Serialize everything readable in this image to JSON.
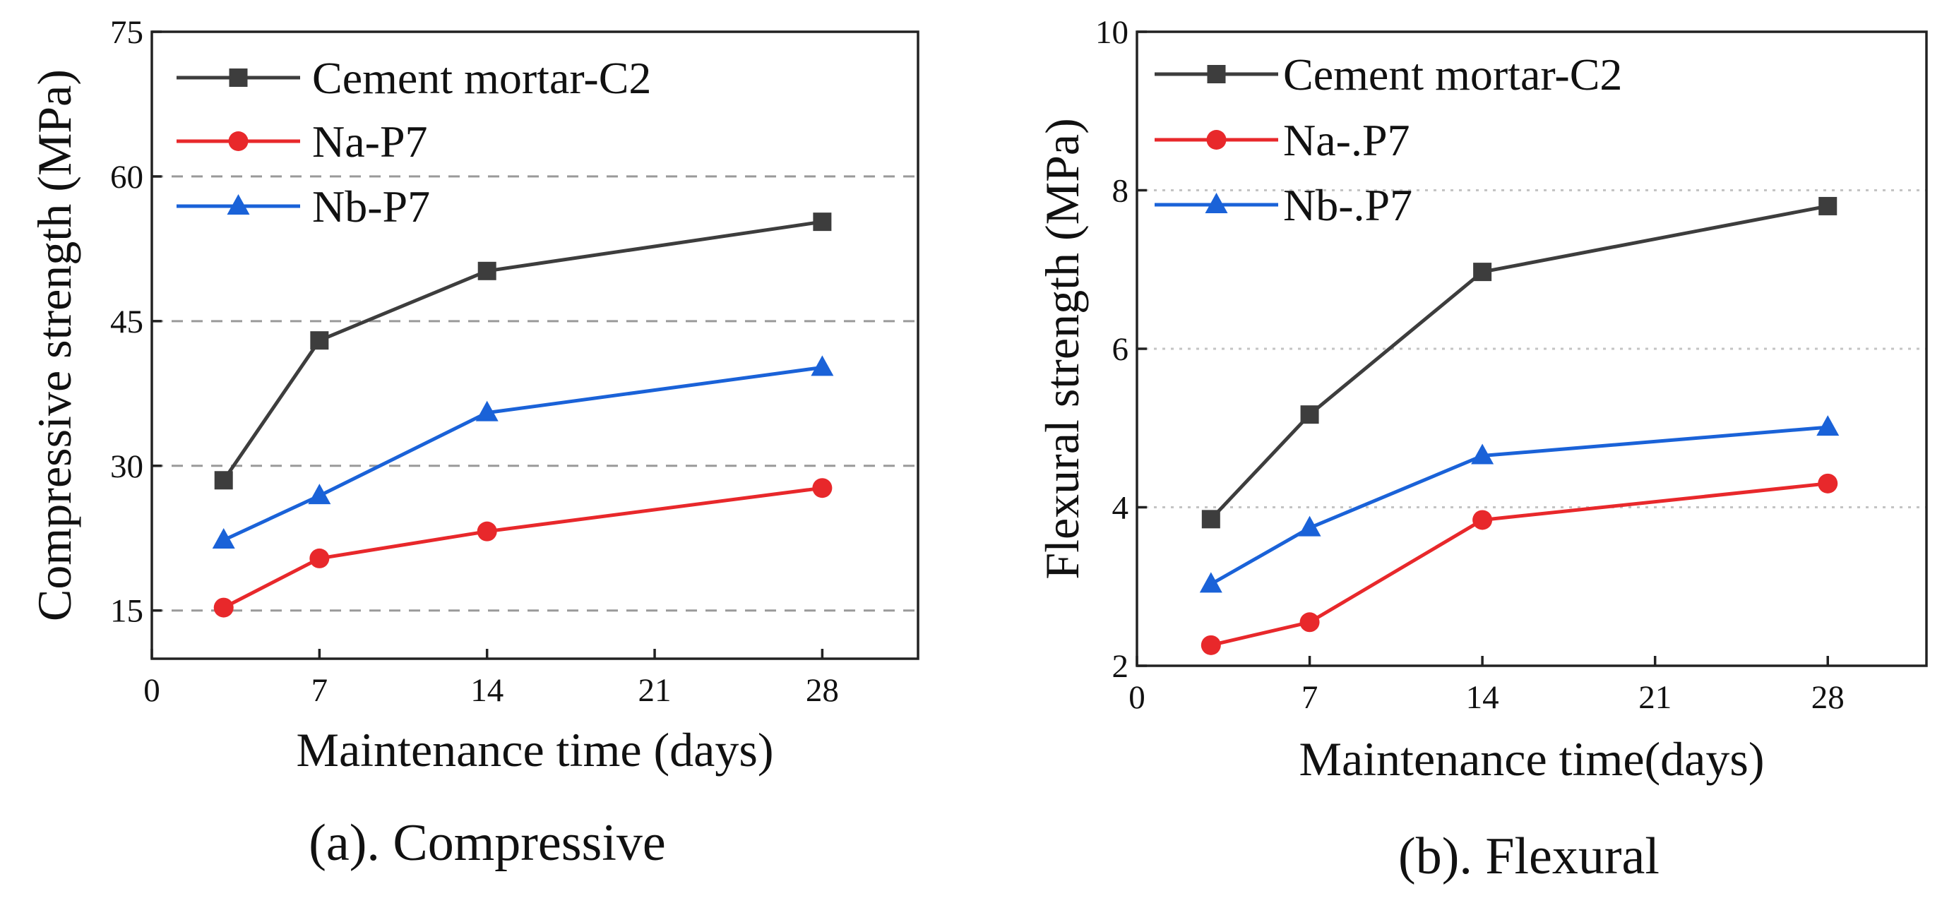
{
  "chart_data": [
    {
      "type": "line",
      "caption": "(a). Compressive",
      "xlabel": "Maintenance time (days)",
      "ylabel": "Compressive strength (MPa)",
      "xlim": [
        0,
        32
      ],
      "ylim": [
        10,
        75
      ],
      "xticks": [
        "0",
        "7",
        "14",
        "21",
        "28"
      ],
      "xtick_values": [
        0,
        7,
        14,
        21,
        28
      ],
      "yticks": [
        "15",
        "30",
        "45",
        "60",
        "75"
      ],
      "ytick_values": [
        15,
        30,
        45,
        60,
        75
      ],
      "grid_y": [
        15,
        30,
        45,
        60
      ],
      "grid_style": "dashed",
      "legend_position": "top-left",
      "x": [
        3,
        7,
        14,
        28
      ],
      "series": [
        {
          "name": "Cement mortar-C2",
          "marker": "square",
          "color": "#3d3d3d",
          "values": [
            28.5,
            43.0,
            50.2,
            55.3
          ]
        },
        {
          "name": "Na-P7",
          "marker": "circle",
          "color": "#e8282b",
          "values": [
            15.3,
            20.4,
            23.2,
            27.7
          ]
        },
        {
          "name": "Nb-P7",
          "marker": "triangle",
          "color": "#1a62d8",
          "values": [
            22.3,
            26.9,
            35.5,
            40.2
          ]
        }
      ]
    },
    {
      "type": "line",
      "caption": "(b). Flexural",
      "xlabel": "Maintenance time(days)",
      "ylabel": "Flexural strength (MPa)",
      "xlim": [
        0,
        32
      ],
      "ylim": [
        2,
        10
      ],
      "xticks": [
        "0",
        "7",
        "14",
        "21",
        "28"
      ],
      "xtick_values": [
        0,
        7,
        14,
        21,
        28
      ],
      "yticks": [
        "2",
        "4",
        "6",
        "8",
        "10"
      ],
      "ytick_values": [
        2,
        4,
        6,
        8,
        10
      ],
      "grid_y": [
        4,
        6,
        8
      ],
      "grid_style": "dotted",
      "legend_position": "top-left",
      "x": [
        3,
        7,
        14,
        28
      ],
      "series": [
        {
          "name": "Cement mortar-C2",
          "marker": "square",
          "color": "#3d3d3d",
          "values": [
            3.85,
            5.17,
            6.97,
            7.8
          ]
        },
        {
          "name": "Na-.P7",
          "marker": "circle",
          "color": "#e8282b",
          "values": [
            2.26,
            2.55,
            3.84,
            4.3
          ]
        },
        {
          "name": "Nb-.P7",
          "marker": "triangle",
          "color": "#1a62d8",
          "values": [
            3.03,
            3.74,
            4.65,
            5.01
          ]
        }
      ]
    }
  ]
}
